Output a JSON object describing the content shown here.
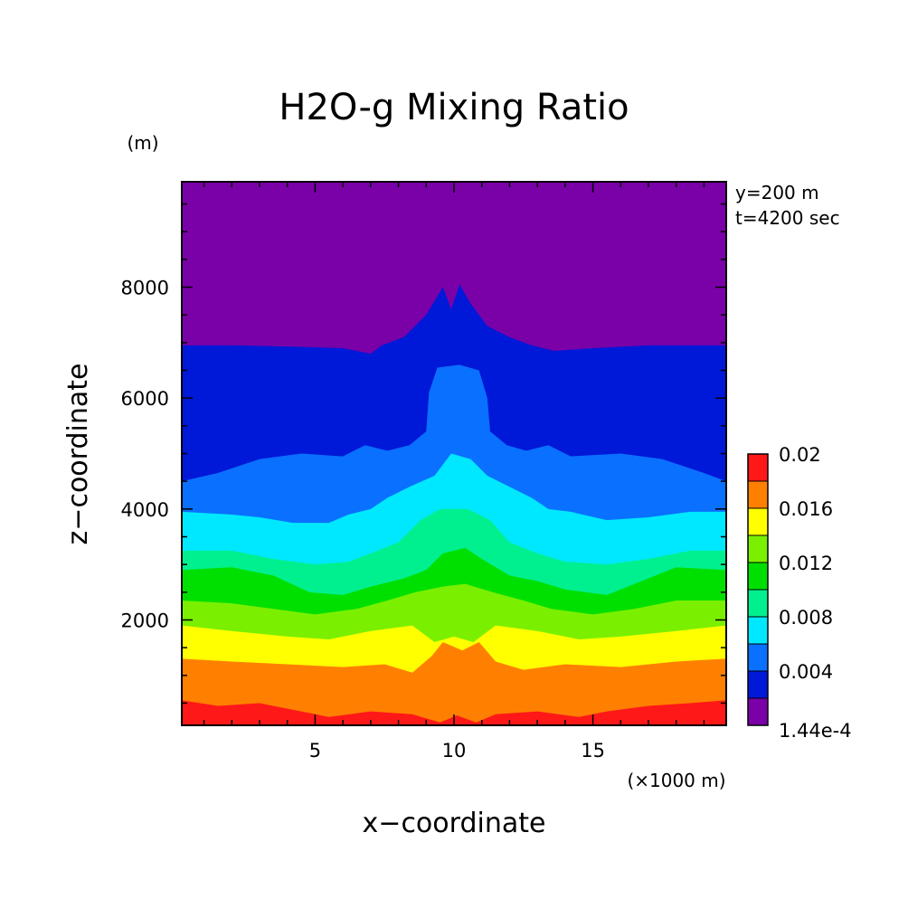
{
  "chart_data": {
    "type": "contour",
    "title": "H2O-g Mixing Ratio",
    "xlabel": "x−coordinate",
    "ylabel": "z−coordinate",
    "x_unit": "(×1000 m)",
    "y_unit": "(m)",
    "annotations": [
      "y=200 m",
      "t=4200 sec"
    ],
    "xlim": [
      0.2,
      19.8
    ],
    "ylim": [
      100,
      9900
    ],
    "xticks": [
      {
        "value": 5,
        "label": "5"
      },
      {
        "value": 10,
        "label": "10"
      },
      {
        "value": 15,
        "label": "15"
      }
    ],
    "yticks": [
      {
        "value": 2000,
        "label": "2000"
      },
      {
        "value": 4000,
        "label": "4000"
      },
      {
        "value": 6000,
        "label": "6000"
      },
      {
        "value": 8000,
        "label": "8000"
      }
    ],
    "colorbar": {
      "min_label": "1.44e-4",
      "max": 0.02,
      "labels": [
        {
          "value": 0.02,
          "label": "0.02"
        },
        {
          "value": 0.016,
          "label": "0.016"
        },
        {
          "value": 0.012,
          "label": "0.012"
        },
        {
          "value": 0.008,
          "label": "0.008"
        },
        {
          "value": 0.004,
          "label": "0.004"
        }
      ],
      "levels": [
        0.000144,
        0.002,
        0.004,
        0.006,
        0.008,
        0.01,
        0.012,
        0.014,
        0.016,
        0.018,
        0.02
      ],
      "colors": [
        "#7a00a8",
        "#0018d8",
        "#0a70ff",
        "#00e8ff",
        "#00f090",
        "#00e000",
        "#7af000",
        "#ffff00",
        "#ff8000",
        "#ff1818"
      ]
    },
    "contour_levels": [
      {
        "lower": 0.000144,
        "top": [
          [
            0.2,
            9900
          ],
          [
            19.8,
            9900
          ]
        ]
      },
      {
        "lower": 0.002,
        "top": [
          [
            0.2,
            6950
          ],
          [
            2,
            6950
          ],
          [
            4,
            6930
          ],
          [
            6,
            6900
          ],
          [
            7,
            6800
          ],
          [
            7.4,
            6950
          ],
          [
            8.2,
            7100
          ],
          [
            9,
            7500
          ],
          [
            9.6,
            8000
          ],
          [
            9.9,
            7600
          ],
          [
            10.2,
            8050
          ],
          [
            10.6,
            7700
          ],
          [
            11.2,
            7300
          ],
          [
            12,
            7100
          ],
          [
            12.8,
            6950
          ],
          [
            13.6,
            6850
          ],
          [
            15,
            6900
          ],
          [
            17,
            6950
          ],
          [
            19.8,
            6950
          ]
        ]
      },
      {
        "lower": 0.004,
        "top": [
          [
            0.2,
            4500
          ],
          [
            1.5,
            4650
          ],
          [
            3,
            4900
          ],
          [
            4.5,
            5000
          ],
          [
            6,
            4950
          ],
          [
            6.8,
            5150
          ],
          [
            7.6,
            5050
          ],
          [
            8.4,
            5150
          ],
          [
            9,
            5400
          ],
          [
            9.1,
            6100
          ],
          [
            9.4,
            6550
          ],
          [
            10.2,
            6600
          ],
          [
            10.9,
            6500
          ],
          [
            11.2,
            6000
          ],
          [
            11.3,
            5400
          ],
          [
            11.9,
            5150
          ],
          [
            12.6,
            5050
          ],
          [
            13.4,
            5150
          ],
          [
            14.2,
            4950
          ],
          [
            16,
            5000
          ],
          [
            17.5,
            4900
          ],
          [
            19,
            4650
          ],
          [
            19.8,
            4500
          ]
        ]
      },
      {
        "lower": 0.006,
        "top": [
          [
            0.2,
            3950
          ],
          [
            2,
            3900
          ],
          [
            3,
            3850
          ],
          [
            4.2,
            3750
          ],
          [
            5.5,
            3750
          ],
          [
            6.2,
            3900
          ],
          [
            7,
            4000
          ],
          [
            7.6,
            4200
          ],
          [
            8.4,
            4400
          ],
          [
            9.3,
            4600
          ],
          [
            9.9,
            5000
          ],
          [
            10.6,
            4900
          ],
          [
            11.2,
            4600
          ],
          [
            12,
            4400
          ],
          [
            12.8,
            4200
          ],
          [
            13.4,
            4000
          ],
          [
            14.2,
            3950
          ],
          [
            15.5,
            3800
          ],
          [
            17,
            3850
          ],
          [
            18.5,
            3950
          ],
          [
            19.8,
            3950
          ]
        ]
      },
      {
        "lower": 0.008,
        "top": [
          [
            0.2,
            3250
          ],
          [
            2,
            3250
          ],
          [
            3.5,
            3100
          ],
          [
            5,
            3000
          ],
          [
            6.2,
            3050
          ],
          [
            7,
            3200
          ],
          [
            8,
            3400
          ],
          [
            8.8,
            3800
          ],
          [
            9.5,
            4000
          ],
          [
            10.5,
            4000
          ],
          [
            11.3,
            3800
          ],
          [
            12,
            3400
          ],
          [
            13,
            3200
          ],
          [
            14,
            3050
          ],
          [
            15.5,
            3000
          ],
          [
            17,
            3100
          ],
          [
            18.5,
            3250
          ],
          [
            19.8,
            3250
          ]
        ]
      },
      {
        "lower": 0.01,
        "top": [
          [
            0.2,
            2900
          ],
          [
            2,
            2950
          ],
          [
            3.5,
            2800
          ],
          [
            4.8,
            2500
          ],
          [
            6,
            2450
          ],
          [
            7,
            2600
          ],
          [
            8.2,
            2750
          ],
          [
            9,
            2900
          ],
          [
            9.6,
            3200
          ],
          [
            10.4,
            3300
          ],
          [
            11,
            3100
          ],
          [
            12,
            2800
          ],
          [
            13,
            2700
          ],
          [
            14,
            2550
          ],
          [
            15.5,
            2450
          ],
          [
            16.5,
            2650
          ],
          [
            18,
            2950
          ],
          [
            19.8,
            2900
          ]
        ]
      },
      {
        "lower": 0.012,
        "top": [
          [
            0.2,
            2350
          ],
          [
            2,
            2300
          ],
          [
            3.5,
            2200
          ],
          [
            5,
            2100
          ],
          [
            6.5,
            2200
          ],
          [
            7.6,
            2350
          ],
          [
            8.6,
            2500
          ],
          [
            9.6,
            2600
          ],
          [
            10.4,
            2650
          ],
          [
            11.4,
            2500
          ],
          [
            12.5,
            2350
          ],
          [
            13.5,
            2200
          ],
          [
            15,
            2100
          ],
          [
            16.5,
            2200
          ],
          [
            18,
            2350
          ],
          [
            19.8,
            2350
          ]
        ]
      },
      {
        "lower": 0.014,
        "top": [
          [
            0.2,
            1900
          ],
          [
            2,
            1800
          ],
          [
            4,
            1700
          ],
          [
            5.5,
            1650
          ],
          [
            7,
            1800
          ],
          [
            8.5,
            1900
          ],
          [
            9.3,
            1600
          ],
          [
            10,
            1700
          ],
          [
            10.7,
            1600
          ],
          [
            11.5,
            1900
          ],
          [
            13,
            1800
          ],
          [
            14.5,
            1650
          ],
          [
            16,
            1700
          ],
          [
            18,
            1800
          ],
          [
            19.8,
            1900
          ]
        ]
      },
      {
        "lower": 0.016,
        "top": [
          [
            0.2,
            1300
          ],
          [
            2,
            1250
          ],
          [
            4,
            1200
          ],
          [
            6,
            1150
          ],
          [
            7.5,
            1200
          ],
          [
            8.5,
            1050
          ],
          [
            9.2,
            1350
          ],
          [
            9.6,
            1600
          ],
          [
            10.3,
            1450
          ],
          [
            10.9,
            1600
          ],
          [
            11.5,
            1250
          ],
          [
            12.5,
            1100
          ],
          [
            14,
            1200
          ],
          [
            16,
            1150
          ],
          [
            18,
            1250
          ],
          [
            19.8,
            1300
          ]
        ]
      },
      {
        "lower": 0.018,
        "top": [
          [
            0.2,
            550
          ],
          [
            1.5,
            450
          ],
          [
            3,
            500
          ],
          [
            4.5,
            350
          ],
          [
            5.5,
            250
          ],
          [
            7,
            350
          ],
          [
            8.5,
            300
          ],
          [
            9.5,
            150
          ],
          [
            10.1,
            280
          ],
          [
            10.8,
            150
          ],
          [
            11.5,
            300
          ],
          [
            13,
            350
          ],
          [
            14.5,
            250
          ],
          [
            15.5,
            350
          ],
          [
            17,
            450
          ],
          [
            18.5,
            500
          ],
          [
            19.8,
            550
          ]
        ]
      }
    ]
  }
}
